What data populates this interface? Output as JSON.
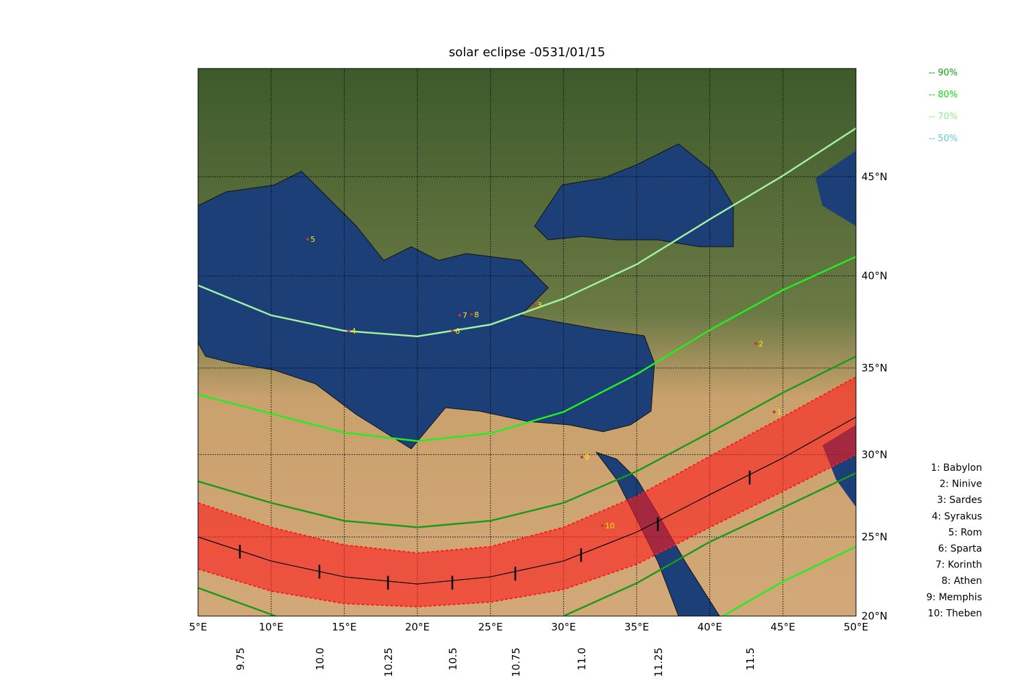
{
  "title": "solar eclipse -0531/01/15",
  "xlim": [
    5,
    50
  ],
  "ylim": [
    20,
    50
  ],
  "projection": "mercator",
  "grid": true,
  "xticks": [
    {
      "value": 5,
      "label": "5°E"
    },
    {
      "value": 10,
      "label": "10°E"
    },
    {
      "value": 15,
      "label": "15°E"
    },
    {
      "value": 20,
      "label": "20°E"
    },
    {
      "value": 25,
      "label": "25°E"
    },
    {
      "value": 30,
      "label": "30°E"
    },
    {
      "value": 35,
      "label": "35°E"
    },
    {
      "value": 40,
      "label": "40°E"
    },
    {
      "value": 45,
      "label": "45°E"
    },
    {
      "value": 50,
      "label": "50°E"
    }
  ],
  "yticks": [
    {
      "value": 20,
      "label": "20°N"
    },
    {
      "value": 25,
      "label": "25°N"
    },
    {
      "value": 30,
      "label": "30°N"
    },
    {
      "value": 35,
      "label": "35°N"
    },
    {
      "value": 40,
      "label": "40°N"
    },
    {
      "value": 45,
      "label": "45°N"
    }
  ],
  "legend": [
    {
      "label": "-- 90%",
      "color": "#109e10"
    },
    {
      "label": "-- 80%",
      "color": "#11dd11"
    },
    {
      "label": "-- 70%",
      "color": "#90ee90"
    },
    {
      "label": "-- 50%",
      "color": "#60cccc"
    }
  ],
  "curves": [
    {
      "color": "#a0f2a0",
      "lon": [
        5,
        10,
        15,
        20,
        25,
        30,
        35,
        40,
        45,
        50
      ],
      "lat": [
        39.5,
        37.9,
        37.06,
        36.75,
        37.4,
        38.8,
        40.6,
        42.9,
        45.05,
        47.3
      ]
    },
    {
      "color": "#22ee22",
      "lon": [
        5,
        10,
        15,
        20,
        25,
        30,
        35,
        40,
        45,
        50
      ],
      "lat": [
        33.5,
        32.4,
        31.3,
        30.8,
        31.25,
        32.5,
        34.65,
        37.1,
        39.25,
        41.0
      ]
    },
    {
      "color": "#1a9a1a",
      "lon": [
        5,
        10,
        15,
        20,
        25,
        30,
        35,
        40,
        45,
        50
      ],
      "lat": [
        28.4,
        27.1,
        26.0,
        25.6,
        26.0,
        27.1,
        29.0,
        31.3,
        33.6,
        35.65
      ]
    },
    {
      "color": "#1a9a1a",
      "lon": [
        5,
        10.3,
        null,
        30,
        35,
        40,
        45,
        50
      ],
      "lat": [
        21.8,
        20.0,
        null,
        20.0,
        22.1,
        24.7,
        26.8,
        28.9
      ]
    },
    {
      "color": "#22ee22",
      "lon": [
        40.9,
        45,
        50
      ],
      "lat": [
        20.0,
        22.2,
        24.4
      ]
    }
  ],
  "totality": {
    "color": "#ff1a1a",
    "lon": [
      5,
      10,
      15,
      20,
      25,
      30,
      35,
      40,
      45,
      50
    ],
    "north": [
      27.1,
      25.6,
      24.5,
      24.0,
      24.4,
      25.6,
      27.5,
      29.9,
      32.2,
      34.5
    ],
    "central": [
      25.0,
      23.5,
      22.5,
      22.05,
      22.5,
      23.5,
      25.3,
      27.6,
      29.8,
      32.2
    ],
    "south": [
      23.0,
      21.6,
      20.8,
      20.6,
      20.9,
      21.7,
      23.3,
      25.6,
      27.8,
      30.0
    ]
  },
  "time_marks": [
    {
      "time": 9.75,
      "lon": 7.86,
      "lat": 24.09
    },
    {
      "time": {
        "value": 10,
        "label": "10.0"
      },
      "lon": 13.3,
      "lat": 22.83
    },
    {
      "time": 10.25,
      "lon": 17.99,
      "lat": 22.13
    },
    {
      "time": 10.5,
      "lon": 22.39,
      "lat": 22.13
    },
    {
      "time": 10.75,
      "lon": 26.7,
      "lat": 22.7
    },
    {
      "time": {
        "value": 11,
        "label": "11.0"
      },
      "lon": 31.2,
      "lat": 23.87
    },
    {
      "time": 11.25,
      "lon": 36.45,
      "lat": 25.79
    },
    {
      "time": 11.5,
      "lon": 42.73,
      "lat": 28.63
    }
  ],
  "cities": [
    {
      "map_label": "1",
      "list_label": "1: Babylon",
      "lon": 44.4,
      "lat": 32.5
    },
    {
      "map_label": "2",
      "list_label": "2: Ninive",
      "lon": 43.15,
      "lat": 36.35
    },
    {
      "map_label": "3",
      "list_label": "3: Sardes",
      "lon": 28.0,
      "lat": 38.45
    },
    {
      "map_label": "4",
      "list_label": "4: Syrakus",
      "lon": 15.3,
      "lat": 37.05
    },
    {
      "map_label": "5",
      "list_label": "5: Rom",
      "lon": 12.5,
      "lat": 41.9
    },
    {
      "map_label": "6",
      "list_label": "6: Sparta",
      "lon": 22.4,
      "lat": 37.05
    },
    {
      "map_label": "7",
      "list_label": "7: Korinth",
      "lon": 22.9,
      "lat": 37.9
    },
    {
      "map_label": "8",
      "list_label": "8: Athen",
      "lon": 23.7,
      "lat": 37.95
    },
    {
      "map_label": "9",
      "list_label": "9: Memphis",
      "lon": 31.25,
      "lat": 29.85
    },
    {
      "map_label": "10",
      "list_label": "10: Theben",
      "lon": 32.65,
      "lat": 25.7
    }
  ]
}
